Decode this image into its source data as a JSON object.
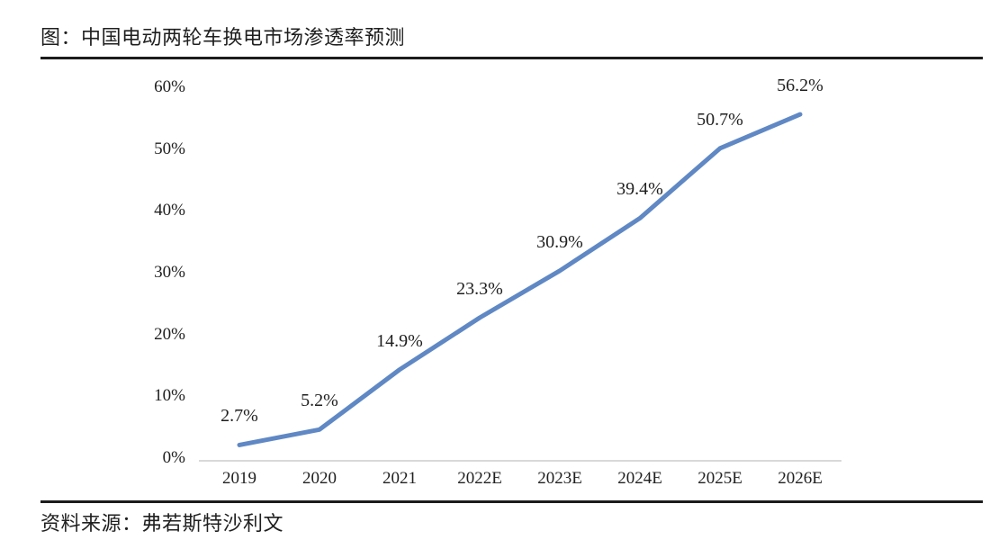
{
  "title": "图：中国电动两轮车换电市场渗透率预测",
  "source": "资料来源：弗若斯特沙利文",
  "chart_data": {
    "type": "line",
    "title": "中国电动两轮车换电市场渗透率预测",
    "categories": [
      "2019",
      "2020",
      "2021",
      "2022E",
      "2023E",
      "2024E",
      "2025E",
      "2026E"
    ],
    "values": [
      2.7,
      5.2,
      14.9,
      23.3,
      30.9,
      39.4,
      50.7,
      56.2
    ],
    "data_labels": [
      "2.7%",
      "5.2%",
      "14.9%",
      "23.3%",
      "30.9%",
      "39.4%",
      "50.7%",
      "56.2%"
    ],
    "xlabel": "",
    "ylabel": "",
    "ylim": [
      0,
      60
    ],
    "yticks": [
      0,
      10,
      20,
      30,
      40,
      50,
      60
    ],
    "ytick_labels": [
      "0%",
      "10%",
      "20%",
      "30%",
      "40%",
      "50%",
      "60%"
    ],
    "grid": false,
    "legend": "none",
    "line_color": "#5f88c4",
    "axis_line_color": "#d9d9d9",
    "rule_color": "#1c1c1c"
  }
}
